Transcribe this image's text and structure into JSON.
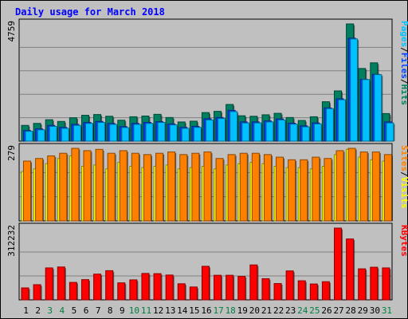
{
  "chart_data": {
    "type": "bar",
    "title": "Daily usage for March 2018",
    "days": [
      "1",
      "2",
      "3",
      "4",
      "5",
      "6",
      "7",
      "8",
      "9",
      "10",
      "11",
      "12",
      "13",
      "14",
      "15",
      "16",
      "17",
      "18",
      "19",
      "20",
      "21",
      "22",
      "23",
      "24",
      "25",
      "26",
      "27",
      "28",
      "29",
      "30",
      "31"
    ],
    "weekend_days": [
      "3",
      "4",
      "10",
      "11",
      "17",
      "18",
      "24",
      "25",
      "31"
    ],
    "panels": [
      {
        "id": "hits",
        "max_label": "4759",
        "ymax": 4759,
        "right_label": [
          "Pages",
          "/",
          "Files",
          "/",
          "Hits"
        ],
        "right_label_colors": [
          "#00c0ff",
          "#000000",
          "#0040ff",
          "#000000",
          "#008060"
        ],
        "series": [
          {
            "name": "Hits",
            "color": "#008060",
            "values": [
              640,
              720,
              870,
              800,
              950,
              1050,
              1080,
              1010,
              850,
              990,
              1020,
              1090,
              960,
              780,
              810,
              1160,
              1210,
              1490,
              1030,
              1010,
              1070,
              1130,
              960,
              840,
              990,
              1600,
              2040,
              4759,
              2950,
              3180,
              1120
            ]
          },
          {
            "name": "Files",
            "color": "#0040ff",
            "values": [
              430,
              500,
              640,
              560,
              680,
              760,
              800,
              720,
              590,
              720,
              760,
              790,
              700,
              560,
              600,
              910,
              960,
              1250,
              780,
              780,
              820,
              900,
              730,
              620,
              740,
              1350,
              1720,
              4180,
              2510,
              2710,
              780
            ]
          },
          {
            "name": "Pages",
            "color": "#00c0ff",
            "values": [
              400,
              460,
              600,
              520,
              640,
              720,
              760,
              680,
              550,
              680,
              720,
              760,
              660,
              520,
              560,
              860,
              920,
              1200,
              740,
              740,
              780,
              860,
              690,
              580,
              700,
              1320,
              1680,
              4150,
              2500,
              2700,
              740
            ]
          }
        ]
      },
      {
        "id": "visits",
        "max_label": "279",
        "ymax": 279,
        "right_label": [
          "Sites",
          "/",
          "Visits"
        ],
        "right_label_colors": [
          "#ff8000",
          "#000000",
          "#ffff00"
        ],
        "series": [
          {
            "name": "Visits",
            "color": "#ffff00",
            "values": [
              190,
              200,
              220,
              240,
              250,
              210,
              215,
              200,
              225,
              210,
              205,
              210,
              215,
              200,
              205,
              210,
              200,
              215,
              220,
              225,
              220,
              210,
              205,
              205,
              200,
              210,
              255,
              275,
              245,
              235,
              230
            ]
          },
          {
            "name": "Sites",
            "color": "#ff8000",
            "values": [
              230,
              240,
              250,
              260,
              279,
              270,
              275,
              260,
              270,
              260,
              255,
              260,
              265,
              255,
              260,
              265,
              240,
              255,
              260,
              260,
              255,
              245,
              235,
              235,
              245,
              240,
              270,
              279,
              265,
              265,
              255
            ]
          }
        ]
      },
      {
        "id": "kbytes",
        "max_label": "312232",
        "ymax": 312232,
        "right_label": [
          "KBytes"
        ],
        "right_label_colors": [
          "#ff0000"
        ],
        "series": [
          {
            "name": "KBytes",
            "color": "#ff0000",
            "values": [
              52000,
              66000,
              139000,
              143000,
              76000,
              88000,
              112000,
              127000,
              74000,
              87000,
              115000,
              114000,
              108000,
              70000,
              56000,
              146000,
              107000,
              107000,
              102000,
              152000,
              92000,
              71000,
              126000,
              83000,
              69000,
              79000,
              312232,
              265000,
              135000,
              142000,
              139000
            ]
          }
        ]
      }
    ]
  }
}
